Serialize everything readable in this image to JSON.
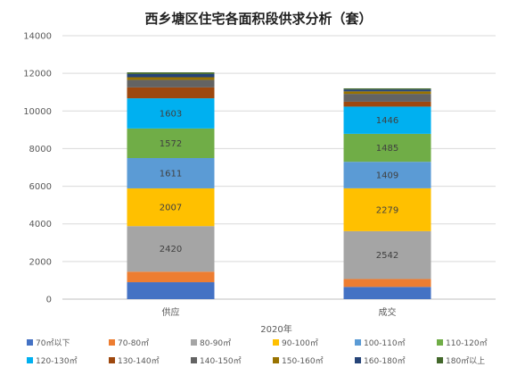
{
  "chart_data": {
    "type": "bar",
    "stacked": true,
    "title": "西乡塘区住宅各面积段供求分析（套）",
    "xlabel": "2020年",
    "ylabel": "",
    "categories": [
      "供应",
      "成交"
    ],
    "ylim": [
      0,
      14000
    ],
    "yticks": [
      0,
      2000,
      4000,
      6000,
      8000,
      10000,
      12000,
      14000
    ],
    "grid": true,
    "legend_position": "bottom",
    "series": [
      {
        "name": "70㎡以下",
        "color": "#4472c4",
        "values": [
          900,
          650
        ]
      },
      {
        "name": "70-80㎡",
        "color": "#ed7d31",
        "values": [
          560,
          420
        ]
      },
      {
        "name": "80-90㎡",
        "color": "#a5a5a5",
        "values": [
          2420,
          2542
        ]
      },
      {
        "name": "90-100㎡",
        "color": "#ffc000",
        "values": [
          2007,
          2279
        ]
      },
      {
        "name": "100-110㎡",
        "color": "#5b9bd5",
        "values": [
          1611,
          1409
        ]
      },
      {
        "name": "110-120㎡",
        "color": "#70ad47",
        "values": [
          1572,
          1485
        ]
      },
      {
        "name": "120-130㎡",
        "color": "#00b0f0",
        "values": [
          1603,
          1446
        ]
      },
      {
        "name": "130-140㎡",
        "color": "#9e480e",
        "values": [
          580,
          260
        ]
      },
      {
        "name": "140-150㎡",
        "color": "#636363",
        "values": [
          400,
          420
        ]
      },
      {
        "name": "150-160㎡",
        "color": "#997300",
        "values": [
          140,
          130
        ]
      },
      {
        "name": "160-180㎡",
        "color": "#264478",
        "values": [
          170,
          100
        ]
      },
      {
        "name": "180㎡以上",
        "color": "#43682b",
        "values": [
          90,
          60
        ]
      }
    ],
    "data_labels": [
      {
        "series": "80-90㎡",
        "values": [
          "2420",
          "2542"
        ]
      },
      {
        "series": "90-100㎡",
        "values": [
          "2007",
          "2279"
        ]
      },
      {
        "series": "100-110㎡",
        "values": [
          "1611",
          "1409"
        ]
      },
      {
        "series": "110-120㎡",
        "values": [
          "1572",
          "1485"
        ]
      },
      {
        "series": "120-130㎡",
        "values": [
          "1603",
          "1446"
        ]
      }
    ]
  }
}
